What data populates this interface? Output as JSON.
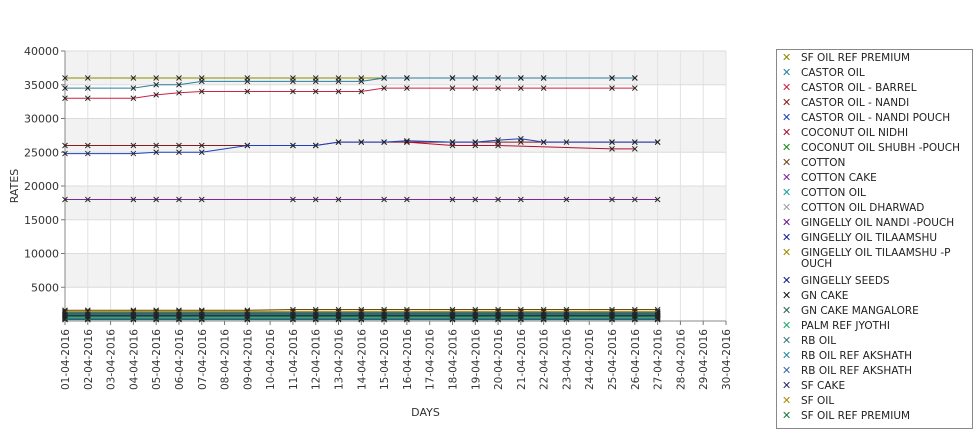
{
  "chart_data": {
    "type": "line",
    "xlabel": "DAYS",
    "ylabel": "RATES",
    "ylim": [
      0,
      40000
    ],
    "yticks": [
      5000,
      10000,
      15000,
      20000,
      25000,
      30000,
      35000,
      40000
    ],
    "grid": true,
    "legend_position": "right",
    "x": [
      "01-04-2016",
      "02-04-2016",
      "03-04-2016",
      "04-04-2016",
      "05-04-2016",
      "06-04-2016",
      "07-04-2016",
      "08-04-2016",
      "09-04-2016",
      "10-04-2016",
      "11-04-2016",
      "12-04-2016",
      "13-04-2016",
      "14-04-2016",
      "15-04-2016",
      "16-04-2016",
      "17-04-2016",
      "18-04-2016",
      "19-04-2016",
      "20-04-2016",
      "21-04-2016",
      "22-04-2016",
      "23-04-2016",
      "24-04-2016",
      "25-04-2016",
      "26-04-2016",
      "27-04-2016",
      "28-04-2016",
      "29-04-2016",
      "30-04-2016"
    ],
    "series": [
      {
        "name": "SF OIL REF PREMIUM",
        "color": "#8a8a00",
        "values": [
          36000,
          36000,
          null,
          36000,
          36000,
          36000,
          36000,
          null,
          36000,
          null,
          36000,
          36000,
          36000,
          36000,
          36000,
          36000,
          null,
          36000,
          36000,
          36000,
          36000,
          36000,
          null,
          null,
          36000,
          36000,
          null,
          null,
          null,
          null
        ]
      },
      {
        "name": "CASTOR OIL",
        "color": "#2a7fa0",
        "values": [
          34500,
          34500,
          null,
          34500,
          35000,
          35000,
          35500,
          null,
          35500,
          null,
          35500,
          35500,
          35500,
          35500,
          36000,
          36000,
          null,
          36000,
          36000,
          36000,
          36000,
          36000,
          null,
          null,
          36000,
          36000,
          null,
          null,
          null,
          null
        ]
      },
      {
        "name": "CASTOR OIL - BARREL",
        "color": "#cc2244",
        "values": [
          33000,
          33000,
          null,
          33000,
          33500,
          33800,
          34000,
          null,
          34000,
          null,
          34000,
          34000,
          34000,
          34000,
          34500,
          34500,
          null,
          34500,
          34500,
          34500,
          34500,
          34500,
          null,
          null,
          34500,
          34500,
          null,
          null,
          null,
          null
        ]
      },
      {
        "name": "CASTOR OIL - NANDI",
        "color": "#8b1a1a",
        "values": [
          26000,
          26000,
          null,
          26000,
          26000,
          26000,
          26000,
          null,
          26000,
          null,
          26000,
          26000,
          26500,
          26500,
          26500,
          26500,
          null,
          26500,
          26500,
          26500,
          26500,
          26500,
          null,
          null,
          26500,
          26500,
          26500,
          null,
          null,
          null
        ]
      },
      {
        "name": "CASTOR OIL - NANDI POUCH",
        "color": "#1f3fbf",
        "values": [
          24800,
          24800,
          null,
          24800,
          25000,
          25000,
          25000,
          null,
          26000,
          null,
          26000,
          26000,
          26500,
          26500,
          26500,
          26700,
          null,
          26500,
          26500,
          26800,
          27000,
          26500,
          26500,
          null,
          26500,
          26500,
          26500,
          null,
          null,
          null
        ]
      },
      {
        "name": "COCONUT OIL NIDHI",
        "color": "#b01030",
        "values": [
          null,
          null,
          null,
          null,
          null,
          null,
          null,
          null,
          null,
          null,
          null,
          null,
          null,
          null,
          null,
          26500,
          null,
          26000,
          26000,
          26000,
          null,
          null,
          null,
          null,
          25500,
          25500,
          null,
          null,
          null,
          null
        ]
      },
      {
        "name": "COCONUT OIL SHUBH -POUCH",
        "color": "#1a8a1a",
        "values": [
          1300,
          1300,
          null,
          1300,
          1300,
          1300,
          1300,
          null,
          1300,
          null,
          1300,
          1300,
          1300,
          1300,
          1300,
          1300,
          null,
          1300,
          1300,
          1300,
          1300,
          1300,
          1300,
          null,
          1300,
          1300,
          1300,
          null,
          null,
          null
        ]
      },
      {
        "name": "COTTON",
        "color": "#6b4a10",
        "values": [
          1600,
          1600,
          null,
          1600,
          1600,
          1600,
          1600,
          null,
          1600,
          null,
          1700,
          1700,
          1700,
          1700,
          1700,
          1700,
          null,
          1700,
          1700,
          1700,
          1700,
          1700,
          1700,
          null,
          1700,
          1700,
          1700,
          null,
          null,
          null
        ]
      },
      {
        "name": "COTTON CAKE",
        "color": "#7a2a9a",
        "values": [
          18000,
          18000,
          null,
          18000,
          18000,
          18000,
          18000,
          null,
          null,
          null,
          18000,
          18000,
          18000,
          null,
          18000,
          18000,
          null,
          18000,
          18000,
          18000,
          18000,
          null,
          18000,
          null,
          18000,
          18000,
          18000,
          null,
          null,
          null
        ]
      },
      {
        "name": "COTTON OIL",
        "color": "#1aa0a0",
        "values": [
          900,
          900,
          null,
          900,
          900,
          900,
          900,
          null,
          900,
          null,
          900,
          900,
          900,
          900,
          900,
          900,
          null,
          900,
          900,
          900,
          900,
          900,
          900,
          null,
          900,
          900,
          900,
          null,
          null,
          null
        ]
      },
      {
        "name": "COTTON OIL DHARWAD",
        "color": "#a0a0a0",
        "values": [
          null,
          null,
          null,
          null,
          null,
          null,
          null,
          null,
          null,
          null,
          null,
          null,
          null,
          null,
          null,
          null,
          null,
          null,
          null,
          null,
          null,
          null,
          null,
          null,
          null,
          null,
          null,
          null,
          null,
          null
        ]
      },
      {
        "name": "GINGELLY OIL NANDI -POUCH",
        "color": "#6a1a8a",
        "values": [
          1100,
          1100,
          null,
          1100,
          1100,
          1100,
          1100,
          null,
          1100,
          null,
          1100,
          1100,
          1100,
          1100,
          1100,
          1100,
          null,
          1100,
          1100,
          1100,
          1100,
          1100,
          1100,
          null,
          1100,
          1100,
          1100,
          null,
          null,
          null
        ]
      },
      {
        "name": "GINGELLY OIL TILAAMSHU",
        "color": "#1a1aa0",
        "values": [
          700,
          700,
          null,
          700,
          700,
          700,
          700,
          null,
          700,
          null,
          700,
          700,
          700,
          700,
          700,
          700,
          null,
          700,
          700,
          700,
          700,
          700,
          700,
          null,
          700,
          700,
          700,
          null,
          null,
          null
        ]
      },
      {
        "name": "GINGELLY OIL TILAAMSHU -POUCH",
        "color": "#a08a00",
        "values": [
          500,
          500,
          null,
          500,
          500,
          500,
          500,
          null,
          500,
          null,
          500,
          500,
          500,
          500,
          500,
          500,
          null,
          500,
          500,
          500,
          500,
          500,
          500,
          null,
          500,
          500,
          500,
          null,
          null,
          null
        ]
      },
      {
        "name": "GINGELLY SEEDS",
        "color": "#10208a",
        "values": [
          300,
          300,
          null,
          300,
          300,
          300,
          300,
          null,
          300,
          null,
          300,
          300,
          300,
          300,
          300,
          300,
          null,
          300,
          300,
          300,
          300,
          300,
          300,
          null,
          300,
          300,
          300,
          null,
          null,
          null
        ]
      },
      {
        "name": "GN CAKE",
        "color": "#111111",
        "values": [
          800,
          800,
          null,
          800,
          800,
          800,
          800,
          null,
          800,
          null,
          800,
          800,
          800,
          800,
          800,
          800,
          null,
          800,
          800,
          800,
          800,
          800,
          800,
          null,
          800,
          800,
          800,
          null,
          null,
          null
        ]
      },
      {
        "name": "GN CAKE MANGALORE",
        "color": "#2a6a4a",
        "values": [
          1000,
          1000,
          null,
          1000,
          1000,
          1000,
          1000,
          null,
          1000,
          null,
          1000,
          1000,
          1000,
          1000,
          1000,
          1000,
          null,
          1000,
          1000,
          1000,
          1000,
          1000,
          1000,
          null,
          1000,
          1000,
          1000,
          null,
          null,
          null
        ]
      },
      {
        "name": "PALM REF JYOTHI",
        "color": "#1aaa6a",
        "values": [
          600,
          600,
          null,
          600,
          600,
          600,
          600,
          null,
          600,
          null,
          600,
          600,
          600,
          600,
          600,
          600,
          null,
          600,
          600,
          600,
          600,
          600,
          600,
          null,
          600,
          600,
          600,
          null,
          null,
          null
        ]
      },
      {
        "name": "RB OIL",
        "color": "#3a7a7a",
        "values": [
          1200,
          1200,
          null,
          1200,
          1200,
          1200,
          1200,
          null,
          1200,
          null,
          1200,
          1200,
          1200,
          1200,
          1200,
          1200,
          null,
          1200,
          1200,
          1200,
          1200,
          1200,
          1200,
          null,
          1200,
          1200,
          1200,
          null,
          null,
          null
        ]
      },
      {
        "name": "RB OIL REF  AKSHATH",
        "color": "#2a8aaa",
        "values": [
          400,
          400,
          null,
          400,
          400,
          400,
          400,
          null,
          400,
          null,
          400,
          400,
          400,
          400,
          400,
          400,
          null,
          400,
          400,
          400,
          400,
          400,
          400,
          null,
          400,
          400,
          400,
          null,
          null,
          null
        ]
      },
      {
        "name": "RB OIL REF AKSHATH",
        "color": "#3a6aaa",
        "values": [
          350,
          350,
          null,
          350,
          350,
          350,
          350,
          null,
          350,
          null,
          350,
          350,
          350,
          350,
          350,
          350,
          null,
          350,
          350,
          350,
          350,
          350,
          350,
          null,
          350,
          350,
          350,
          null,
          null,
          null
        ]
      },
      {
        "name": "SF CAKE",
        "color": "#2a2a6a",
        "values": [
          750,
          750,
          null,
          750,
          750,
          750,
          750,
          null,
          750,
          null,
          750,
          750,
          750,
          750,
          750,
          750,
          null,
          750,
          750,
          750,
          750,
          750,
          750,
          null,
          750,
          750,
          750,
          null,
          null,
          null
        ]
      },
      {
        "name": "SF OIL",
        "color": "#b08a10",
        "values": [
          1450,
          1450,
          null,
          1450,
          1450,
          1450,
          1450,
          null,
          1450,
          null,
          1450,
          1450,
          1450,
          1450,
          1450,
          1450,
          null,
          1450,
          1450,
          1450,
          1450,
          1450,
          1450,
          null,
          1450,
          1450,
          1450,
          null,
          null,
          null
        ]
      },
      {
        "name": "SF OIL REF PREMIUM",
        "color": "#1a7a3a",
        "values": [
          200,
          200,
          null,
          200,
          200,
          200,
          200,
          null,
          200,
          null,
          200,
          200,
          200,
          200,
          200,
          200,
          null,
          200,
          200,
          200,
          200,
          200,
          200,
          null,
          200,
          200,
          200,
          null,
          null,
          null
        ]
      }
    ],
    "legend": [
      {
        "label": "SF OIL REF PREMIUM",
        "color": "#8a8a00"
      },
      {
        "label": "CASTOR OIL",
        "color": "#2a7fa0"
      },
      {
        "label": "CASTOR OIL - BARREL",
        "color": "#cc2244"
      },
      {
        "label": "CASTOR OIL - NANDI",
        "color": "#8b1a1a"
      },
      {
        "label": "CASTOR OIL - NANDI POUCH",
        "color": "#1f3fbf"
      },
      {
        "label": "COCONUT OIL NIDHI",
        "color": "#b01030"
      },
      {
        "label": "COCONUT OIL SHUBH -POUCH",
        "color": "#1a8a1a"
      },
      {
        "label": "COTTON",
        "color": "#6b4a10"
      },
      {
        "label": "COTTON CAKE",
        "color": "#7a2a9a"
      },
      {
        "label": "COTTON OIL",
        "color": "#1aa0a0"
      },
      {
        "label": "COTTON OIL DHARWAD",
        "color": "#a0a0a0"
      },
      {
        "label": "GINGELLY OIL NANDI -POUCH",
        "color": "#6a1a8a"
      },
      {
        "label": "GINGELLY OIL TILAAMSHU",
        "color": "#1a1aa0"
      },
      {
        "label": "GINGELLY OIL TILAAMSHU -P OUCH",
        "color": "#a08a00"
      },
      {
        "label": "GINGELLY SEEDS",
        "color": "#10208a"
      },
      {
        "label": "GN CAKE",
        "color": "#111111"
      },
      {
        "label": "GN CAKE MANGALORE",
        "color": "#2a6a4a"
      },
      {
        "label": "PALM REF JYOTHI",
        "color": "#1aaa6a"
      },
      {
        "label": "RB OIL",
        "color": "#3a7a7a"
      },
      {
        "label": "RB OIL REF  AKSHATH",
        "color": "#2a8aaa"
      },
      {
        "label": "RB OIL REF AKSHATH",
        "color": "#3a6aaa"
      },
      {
        "label": "SF CAKE",
        "color": "#2a2a6a"
      },
      {
        "label": "SF OIL",
        "color": "#b08a10"
      },
      {
        "label": "SF OIL REF PREMIUM",
        "color": "#1a7a3a"
      }
    ]
  }
}
